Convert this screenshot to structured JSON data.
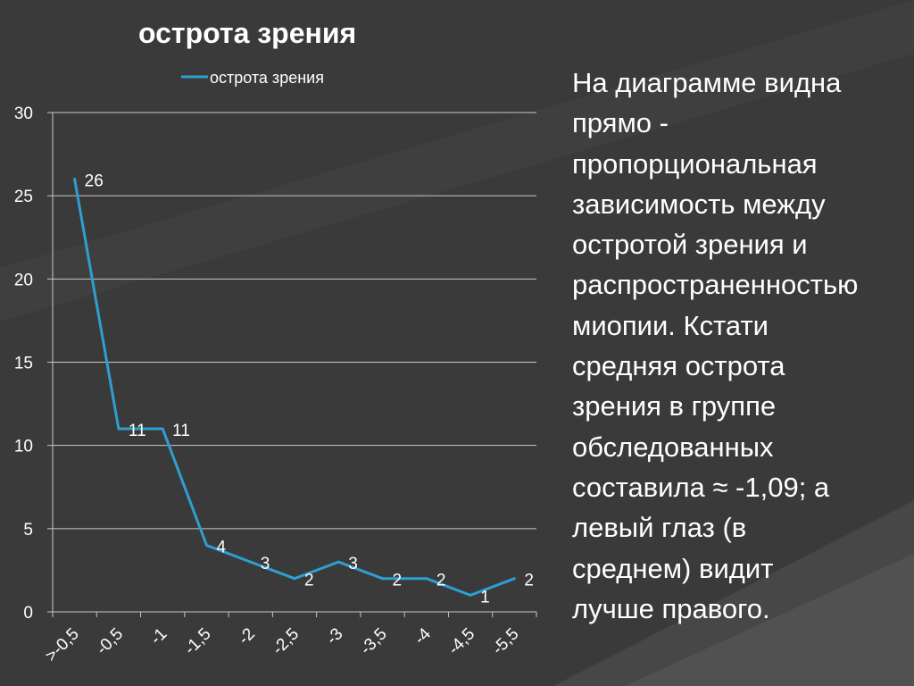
{
  "slide": {
    "text": "На диаграмме видна\nпрямо -\nпропорциональная\nзависимость между\nостротой зрения и\nраспространенностью\nмиопии. Кстати\nсредняя острота\nзрения в группе\nобследованных\nсоставила ≈ -1,09; а\nлевый глаз (в\nсреднем) видит\nлучше правого."
  },
  "chart_data": {
    "type": "line",
    "title": "острота зрения",
    "legend": {
      "position": "top",
      "entries": [
        "острота зрения"
      ]
    },
    "categories": [
      ">-0,5",
      "-0,5",
      "-1",
      "-1,5",
      "-2",
      "-2,5",
      "-3",
      "-3,5",
      "-4",
      "-4,5",
      "-5,5"
    ],
    "series": [
      {
        "name": "острота зрения",
        "values": [
          26,
          11,
          11,
          4,
          3,
          2,
          3,
          2,
          2,
          1,
          2
        ],
        "color": "#2e9fd1"
      }
    ],
    "ylim": [
      0,
      30
    ],
    "yticks": [
      "0",
      "5",
      "10",
      "15",
      "20",
      "25",
      "30"
    ],
    "grid": true,
    "line_color": "#2e9fd1",
    "text_color": "#ffffff",
    "grid_color": "#c8c8c8"
  }
}
